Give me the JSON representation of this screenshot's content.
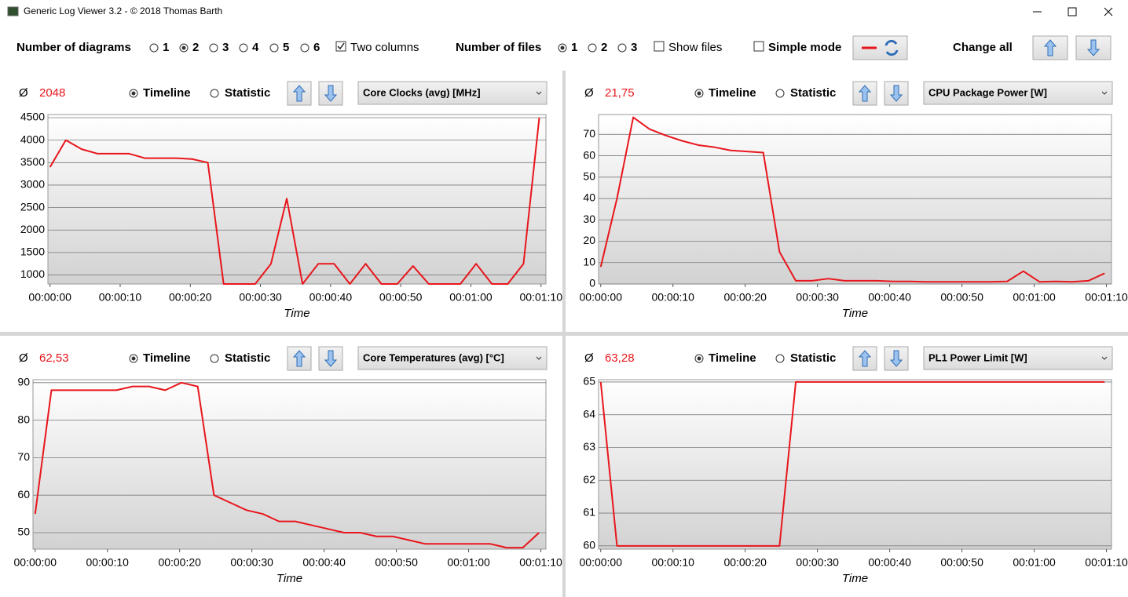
{
  "window": {
    "title": "Generic Log Viewer 3.2 - © 2018 Thomas Barth"
  },
  "toolbar": {
    "diagrams_label": "Number of diagrams",
    "diagram_options": [
      "1",
      "2",
      "3",
      "4",
      "5",
      "6"
    ],
    "two_columns": "Two columns",
    "files_label": "Number of files",
    "file_options": [
      "1",
      "2",
      "3"
    ],
    "show_files": "Show files",
    "simple_mode": "Simple mode",
    "change_all": "Change all"
  },
  "panels": [
    {
      "avg_symbol": "Ø",
      "avg_value": "2048",
      "timeline": "Timeline",
      "statistic": "Statistic",
      "channel": "Core Clocks (avg) [MHz]"
    },
    {
      "avg_symbol": "Ø",
      "avg_value": "21,75",
      "timeline": "Timeline",
      "statistic": "Statistic",
      "channel": "CPU Package Power [W]"
    },
    {
      "avg_symbol": "Ø",
      "avg_value": "62,53",
      "timeline": "Timeline",
      "statistic": "Statistic",
      "channel": "Core Temperatures (avg) [°C]"
    },
    {
      "avg_symbol": "Ø",
      "avg_value": "63,28",
      "timeline": "Timeline",
      "statistic": "Statistic",
      "channel": "PL1 Power Limit [W]"
    }
  ],
  "chart_data": [
    {
      "type": "line",
      "xlabel": "Time",
      "grid": true,
      "x": [
        0,
        2.25,
        4.5,
        6.75,
        9,
        11.25,
        13.5,
        15.75,
        18,
        20.25,
        22.5,
        24.75,
        27,
        29.25,
        31.5,
        33.75,
        36,
        38.25,
        40.5,
        42.75,
        45,
        47.25,
        49.5,
        51.75,
        54,
        56.25,
        58.5,
        60.75,
        63,
        65.25,
        67.5,
        69.75
      ],
      "series": [
        {
          "color": "#e8161c",
          "values": [
            3400,
            4000,
            3800,
            3700,
            3700,
            3700,
            3600,
            3600,
            3600,
            3580,
            3500,
            800,
            800,
            800,
            1250,
            2700,
            800,
            1250,
            1250,
            800,
            1250,
            800,
            800,
            1200,
            800,
            800,
            800,
            1250,
            800,
            800,
            1250,
            4500
          ]
        }
      ],
      "xlim": [
        -0.3,
        70.7
      ],
      "ylim": [
        800,
        4570
      ],
      "xticks": [
        {
          "value": 0,
          "label": "00:00:00"
        },
        {
          "value": 10,
          "label": "00:00:10"
        },
        {
          "value": 20,
          "label": "00:00:20"
        },
        {
          "value": 30,
          "label": "00:00:30"
        },
        {
          "value": 40,
          "label": "00:00:40"
        },
        {
          "value": 50,
          "label": "00:00:50"
        },
        {
          "value": 60,
          "label": "00:01:00"
        },
        {
          "value": 70,
          "label": "00:01:10"
        }
      ],
      "yticks": [
        1000,
        1500,
        2000,
        2500,
        3000,
        3500,
        4000,
        4500
      ]
    },
    {
      "type": "line",
      "xlabel": "Time",
      "grid": true,
      "x": [
        0,
        2.25,
        4.5,
        6.75,
        9,
        11.25,
        13.5,
        15.75,
        18,
        20.25,
        22.5,
        24.75,
        27,
        29.25,
        31.5,
        33.75,
        36,
        38.25,
        40.5,
        42.75,
        45,
        47.25,
        49.5,
        51.75,
        54,
        56.25,
        58.5,
        60.75,
        63,
        65.25,
        67.5,
        69.75
      ],
      "series": [
        {
          "color": "#e8161c",
          "values": [
            8,
            40,
            78,
            72.5,
            69.5,
            67,
            65,
            64,
            62.5,
            62,
            61.5,
            15,
            1.5,
            1.5,
            2.5,
            1.5,
            1.5,
            1.5,
            1.2,
            1.2,
            1,
            1,
            1,
            1,
            1,
            1.2,
            6,
            1,
            1.2,
            1,
            1.5,
            5
          ]
        }
      ],
      "xlim": [
        -0.3,
        70.7
      ],
      "ylim": [
        0,
        79.3
      ],
      "xticks": [
        {
          "value": 0,
          "label": "00:00:00"
        },
        {
          "value": 10,
          "label": "00:00:10"
        },
        {
          "value": 20,
          "label": "00:00:20"
        },
        {
          "value": 30,
          "label": "00:00:30"
        },
        {
          "value": 40,
          "label": "00:00:40"
        },
        {
          "value": 50,
          "label": "00:00:50"
        },
        {
          "value": 60,
          "label": "00:01:00"
        },
        {
          "value": 70,
          "label": "00:01:10"
        }
      ],
      "yticks": [
        0,
        10,
        20,
        30,
        40,
        50,
        60,
        70
      ]
    },
    {
      "type": "line",
      "xlabel": "Time",
      "grid": true,
      "x": [
        0,
        2.25,
        4.5,
        6.75,
        9,
        11.25,
        13.5,
        15.75,
        18,
        20.25,
        22.5,
        24.75,
        27,
        29.25,
        31.5,
        33.75,
        36,
        38.25,
        40.5,
        42.75,
        45,
        47.25,
        49.5,
        51.75,
        54,
        56.25,
        58.5,
        60.75,
        63,
        65.25,
        67.5,
        69.75
      ],
      "series": [
        {
          "color": "#e8161c",
          "values": [
            55,
            88,
            88,
            88,
            88,
            88,
            89,
            89,
            88,
            90,
            89,
            60,
            58,
            56,
            55,
            53,
            53,
            52,
            51,
            50,
            50,
            49,
            49,
            48,
            47,
            47,
            47,
            47,
            47,
            46,
            46,
            50
          ]
        }
      ],
      "xlim": [
        -0.3,
        70.7
      ],
      "ylim": [
        45.6,
        90.8
      ],
      "xticks": [
        {
          "value": 0,
          "label": "00:00:00"
        },
        {
          "value": 10,
          "label": "00:00:10"
        },
        {
          "value": 20,
          "label": "00:00:20"
        },
        {
          "value": 30,
          "label": "00:00:30"
        },
        {
          "value": 40,
          "label": "00:00:40"
        },
        {
          "value": 50,
          "label": "00:00:50"
        },
        {
          "value": 60,
          "label": "00:01:00"
        },
        {
          "value": 70,
          "label": "00:01:10"
        }
      ],
      "yticks": [
        50,
        60,
        70,
        80,
        90
      ]
    },
    {
      "type": "line",
      "xlabel": "Time",
      "grid": true,
      "x": [
        0,
        2.25,
        4.5,
        6.75,
        9,
        11.25,
        13.5,
        15.75,
        18,
        20.25,
        22.5,
        24.75,
        27,
        29.25,
        31.5,
        33.75,
        36,
        38.25,
        40.5,
        42.75,
        45,
        47.25,
        49.5,
        51.75,
        54,
        56.25,
        58.5,
        60.75,
        63,
        65.25,
        67.5,
        69.75
      ],
      "series": [
        {
          "color": "#e8161c",
          "values": [
            65,
            60,
            60,
            60,
            60,
            60,
            60,
            60,
            60,
            60,
            60,
            60,
            65,
            65,
            65,
            65,
            65,
            65,
            65,
            65,
            65,
            65,
            65,
            65,
            65,
            65,
            65,
            65,
            65,
            65,
            65,
            65
          ]
        }
      ],
      "xlim": [
        -0.3,
        70.7
      ],
      "ylim": [
        59.9,
        65.07
      ],
      "xticks": [
        {
          "value": 0,
          "label": "00:00:00"
        },
        {
          "value": 10,
          "label": "00:00:10"
        },
        {
          "value": 20,
          "label": "00:00:20"
        },
        {
          "value": 30,
          "label": "00:00:30"
        },
        {
          "value": 40,
          "label": "00:00:40"
        },
        {
          "value": 50,
          "label": "00:00:50"
        },
        {
          "value": 60,
          "label": "00:01:00"
        },
        {
          "value": 70,
          "label": "00:01:10"
        }
      ],
      "yticks": [
        60,
        61,
        62,
        63,
        64,
        65
      ]
    }
  ]
}
